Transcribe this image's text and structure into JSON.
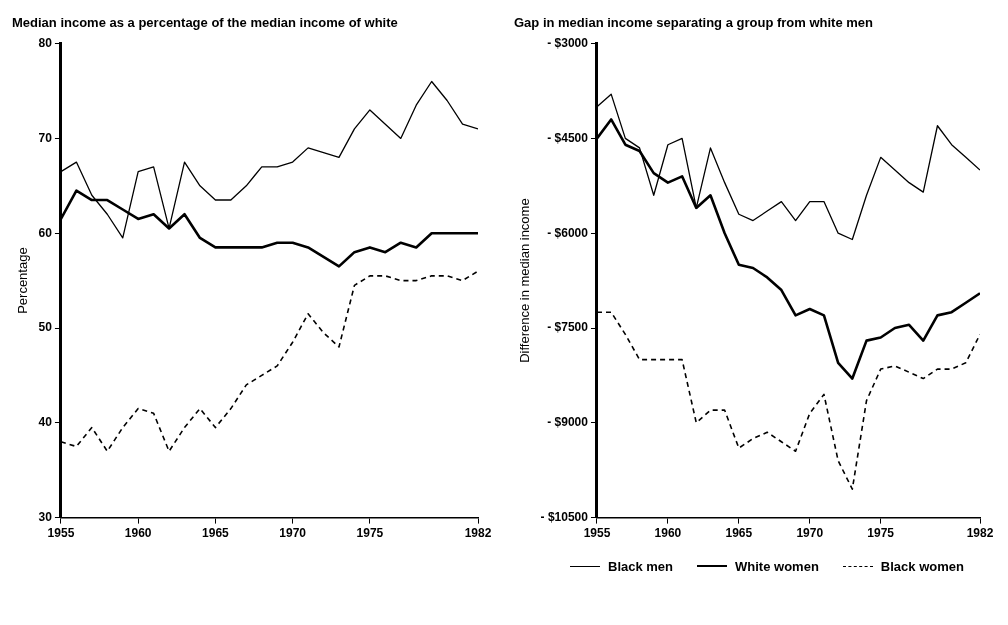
{
  "chart_data": [
    {
      "type": "line",
      "title": "Median income as a percentage of the median income of white",
      "ylabel": "Percentage",
      "x": [
        1955,
        1956,
        1957,
        1958,
        1959,
        1960,
        1961,
        1962,
        1963,
        1964,
        1965,
        1966,
        1967,
        1968,
        1969,
        1970,
        1971,
        1972,
        1973,
        1974,
        1975,
        1976,
        1977,
        1978,
        1979,
        1980,
        1981,
        1982
      ],
      "series": [
        {
          "color": "#000000",
          "line_style": "solid",
          "values": [
            66.5,
            67.5,
            64,
            62,
            59.5,
            66.5,
            67,
            60.5,
            67.5,
            65,
            63.5,
            63.5,
            65,
            67,
            67,
            67.5,
            69,
            68.5,
            68,
            71,
            73,
            71.5,
            70,
            73.5,
            76,
            74,
            71.5,
            71
          ]
        },
        {
          "color": "#000000",
          "line_style": "solid",
          "values": [
            61.5,
            64.5,
            63.5,
            63.5,
            62.5,
            61.5,
            62,
            60.5,
            62,
            59.5,
            58.5,
            58.5,
            58.5,
            58.5,
            59,
            59,
            58.5,
            57.5,
            56.5,
            58,
            58.5,
            58,
            59,
            58.5,
            60,
            60,
            60,
            60
          ]
        },
        {
          "color": "#000000",
          "line_style": "dashed",
          "values": [
            38,
            37.5,
            39.5,
            37,
            39.5,
            41.5,
            41,
            37,
            39.5,
            41.5,
            39.5,
            41.5,
            44,
            45,
            46,
            48.5,
            51.5,
            49.5,
            48,
            54.5,
            55.5,
            55.5,
            55,
            55,
            55.5,
            55.5,
            55,
            56
          ]
        }
      ],
      "xlim": [
        1955,
        1982
      ],
      "xticks": [
        1955,
        1960,
        1965,
        1970,
        1975,
        1982
      ],
      "ylim": [
        30,
        80
      ],
      "yticks": [
        30,
        40,
        50,
        60,
        70,
        80
      ],
      "marker": "none"
    },
    {
      "type": "line",
      "title": "Gap in median income separating a group from white men",
      "ylabel": "Difference in median income",
      "x": [
        1955,
        1956,
        1957,
        1958,
        1959,
        1960,
        1961,
        1962,
        1963,
        1964,
        1965,
        1966,
        1967,
        1968,
        1969,
        1970,
        1971,
        1972,
        1973,
        1974,
        1975,
        1976,
        1977,
        1978,
        1979,
        1980,
        1981,
        1982
      ],
      "series": [
        {
          "name": "Black men",
          "color": "#000000",
          "line_style": "solid",
          "values": [
            -4000,
            -3800,
            -4500,
            -4650,
            -5400,
            -4600,
            -4500,
            -5600,
            -4650,
            -5200,
            -5700,
            -5800,
            -5650,
            -5500,
            -5800,
            -5500,
            -5500,
            -6000,
            -6100,
            -5400,
            -4800,
            -5000,
            -5200,
            -5350,
            -4300,
            -4600,
            -4800,
            -5000
          ]
        },
        {
          "name": "White women",
          "color": "#000000",
          "line_style": "solid",
          "values": [
            -4500,
            -4200,
            -4600,
            -4700,
            -5050,
            -5200,
            -5100,
            -5600,
            -5400,
            -6000,
            -6500,
            -6550,
            -6700,
            -6900,
            -7300,
            -7200,
            -7300,
            -8050,
            -8300,
            -7700,
            -7650,
            -7500,
            -7450,
            -7700,
            -7300,
            -7250,
            -7100,
            -6950
          ]
        },
        {
          "name": "Black women",
          "color": "#000000",
          "line_style": "dashed",
          "values": [
            -7250,
            -7250,
            -7600,
            -8000,
            -8000,
            -8000,
            -8000,
            -9000,
            -8800,
            -8800,
            -9400,
            -9250,
            -9150,
            -9300,
            -9450,
            -8850,
            -8550,
            -9600,
            -10050,
            -8650,
            -8150,
            -8100,
            -8200,
            -8300,
            -8150,
            -8150,
            -8050,
            -7600
          ]
        }
      ],
      "xlim": [
        1955,
        1982
      ],
      "xticks": [
        1955,
        1960,
        1965,
        1970,
        1975,
        1982
      ],
      "ylim": [
        -10500,
        -3000
      ],
      "yticks": [
        {
          "value": -10500,
          "label": "- $10500"
        },
        {
          "value": -9000,
          "label": "- $9000"
        },
        {
          "value": -7500,
          "label": "- $7500"
        },
        {
          "value": -6000,
          "label": "- $6000"
        },
        {
          "value": -4500,
          "label": "- $4500"
        },
        {
          "value": -3000,
          "label": "- $3000"
        }
      ],
      "marker": "none",
      "legend": "bottom left"
    }
  ]
}
